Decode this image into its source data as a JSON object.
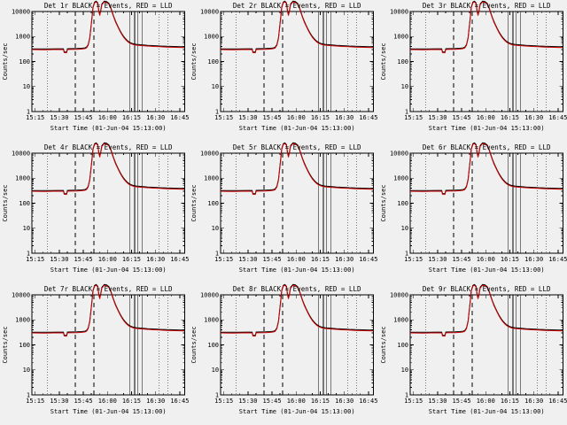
{
  "page": {
    "background": "#f0f0f0",
    "foreground": "#000000"
  },
  "chart_data": {
    "type": "line",
    "layout": "3x3-grid",
    "title_suffix": "BLACK = Events, RED = LLD",
    "panels": [
      {
        "det": "Det 1r"
      },
      {
        "det": "Det 2r"
      },
      {
        "det": "Det 3r"
      },
      {
        "det": "Det 4r"
      },
      {
        "det": "Det 5r"
      },
      {
        "det": "Det 6r"
      },
      {
        "det": "Det 7r"
      },
      {
        "det": "Det 8r"
      },
      {
        "det": "Det 9r"
      }
    ],
    "xlabel": "Start Time (01-Jun-04 15:13:00)",
    "ylabel": "Counts/sec",
    "x_range_minutes": [
      0,
      95
    ],
    "y_range": [
      1,
      10000
    ],
    "y_scale": "log",
    "x_ticks": [
      {
        "m": 2,
        "label": "15:15"
      },
      {
        "m": 17,
        "label": "15:30"
      },
      {
        "m": 32,
        "label": "15:45"
      },
      {
        "m": 47,
        "label": "16:00"
      },
      {
        "m": 62,
        "label": "16:15"
      },
      {
        "m": 77,
        "label": "16:30"
      },
      {
        "m": 92,
        "label": "16:45"
      }
    ],
    "y_ticks": [
      {
        "v": 1,
        "label": "1"
      },
      {
        "v": 10,
        "label": "10"
      },
      {
        "v": 100,
        "label": "100"
      },
      {
        "v": 1000,
        "label": "1000"
      },
      {
        "v": 10000,
        "label": "10000"
      }
    ],
    "series": [
      {
        "name": "Events",
        "color": "#000000",
        "points": [
          [
            0,
            320
          ],
          [
            4,
            322
          ],
          [
            8,
            318
          ],
          [
            12,
            320
          ],
          [
            16,
            324
          ],
          [
            19.6,
            324
          ],
          [
            20.1,
            242
          ],
          [
            21.6,
            240
          ],
          [
            22.1,
            326
          ],
          [
            25,
            328
          ],
          [
            28,
            332
          ],
          [
            31,
            340
          ],
          [
            33,
            352
          ],
          [
            34,
            380
          ],
          [
            35,
            480
          ],
          [
            36,
            900
          ],
          [
            36.8,
            2600
          ],
          [
            37.5,
            7000
          ],
          [
            38,
            15000
          ],
          [
            39,
            24000
          ],
          [
            40,
            26000
          ],
          [
            41,
            22000
          ],
          [
            41.6,
            11000
          ],
          [
            42.2,
            7500
          ],
          [
            42.8,
            11000
          ],
          [
            43.5,
            20000
          ],
          [
            45,
            26000
          ],
          [
            46.5,
            25000
          ],
          [
            48,
            21000
          ],
          [
            49,
            15000
          ],
          [
            50,
            9500
          ],
          [
            51,
            6200
          ],
          [
            52,
            4200
          ],
          [
            53,
            3000
          ],
          [
            54,
            2200
          ],
          [
            55,
            1650
          ],
          [
            56,
            1280
          ],
          [
            57,
            1020
          ],
          [
            58,
            850
          ],
          [
            59,
            730
          ],
          [
            60,
            640
          ],
          [
            61,
            580
          ],
          [
            62,
            540
          ],
          [
            63,
            515
          ],
          [
            64,
            498
          ],
          [
            65,
            485
          ],
          [
            66,
            478
          ],
          [
            68,
            466
          ],
          [
            70,
            455
          ],
          [
            72,
            446
          ],
          [
            74,
            438
          ],
          [
            76,
            430
          ],
          [
            78,
            424
          ],
          [
            80,
            418
          ],
          [
            82,
            412
          ],
          [
            84,
            407
          ],
          [
            86,
            403
          ],
          [
            88,
            399
          ],
          [
            90,
            396
          ],
          [
            92,
            393
          ],
          [
            95,
            390
          ]
        ]
      },
      {
        "name": "LLD",
        "color": "#cc0000",
        "points": [
          [
            0,
            300
          ],
          [
            8,
            296
          ],
          [
            16,
            302
          ],
          [
            19.6,
            301
          ],
          [
            20.1,
            226
          ],
          [
            21.6,
            224
          ],
          [
            22.1,
            303
          ],
          [
            28,
            309
          ],
          [
            31,
            316
          ],
          [
            33,
            328
          ],
          [
            34,
            354
          ],
          [
            35,
            447
          ],
          [
            36,
            838
          ],
          [
            36.8,
            2420
          ],
          [
            37.5,
            6500
          ],
          [
            38,
            14000
          ],
          [
            39,
            22300
          ],
          [
            40,
            24200
          ],
          [
            41,
            20500
          ],
          [
            41.6,
            10200
          ],
          [
            42.2,
            7000
          ],
          [
            42.8,
            10200
          ],
          [
            43.5,
            18600
          ],
          [
            45,
            24200
          ],
          [
            46.5,
            23300
          ],
          [
            48,
            19500
          ],
          [
            49,
            14000
          ],
          [
            50,
            8800
          ],
          [
            51,
            5800
          ],
          [
            52,
            3900
          ],
          [
            53,
            2800
          ],
          [
            54,
            2050
          ],
          [
            55,
            1530
          ],
          [
            56,
            1190
          ],
          [
            57,
            950
          ],
          [
            58,
            790
          ],
          [
            59,
            680
          ],
          [
            60,
            595
          ],
          [
            61,
            540
          ],
          [
            62,
            502
          ],
          [
            63,
            479
          ],
          [
            64,
            463
          ],
          [
            65,
            451
          ],
          [
            68,
            433
          ],
          [
            72,
            415
          ],
          [
            76,
            400
          ],
          [
            80,
            389
          ],
          [
            84,
            379
          ],
          [
            88,
            371
          ],
          [
            92,
            366
          ],
          [
            95,
            363
          ]
        ]
      }
    ],
    "vlines": [
      {
        "x": 9.5,
        "style": "dotted"
      },
      {
        "x": 27,
        "style": "dashed"
      },
      {
        "x": 38.5,
        "style": "dashed"
      },
      {
        "x": 61,
        "style": "solid"
      },
      {
        "x": 64,
        "style": "solid"
      },
      {
        "x": 66,
        "style": "solid"
      },
      {
        "x": 68.5,
        "style": "solid"
      },
      {
        "x": 79,
        "style": "dotted"
      },
      {
        "x": 84.5,
        "style": "dotted"
      }
    ]
  }
}
